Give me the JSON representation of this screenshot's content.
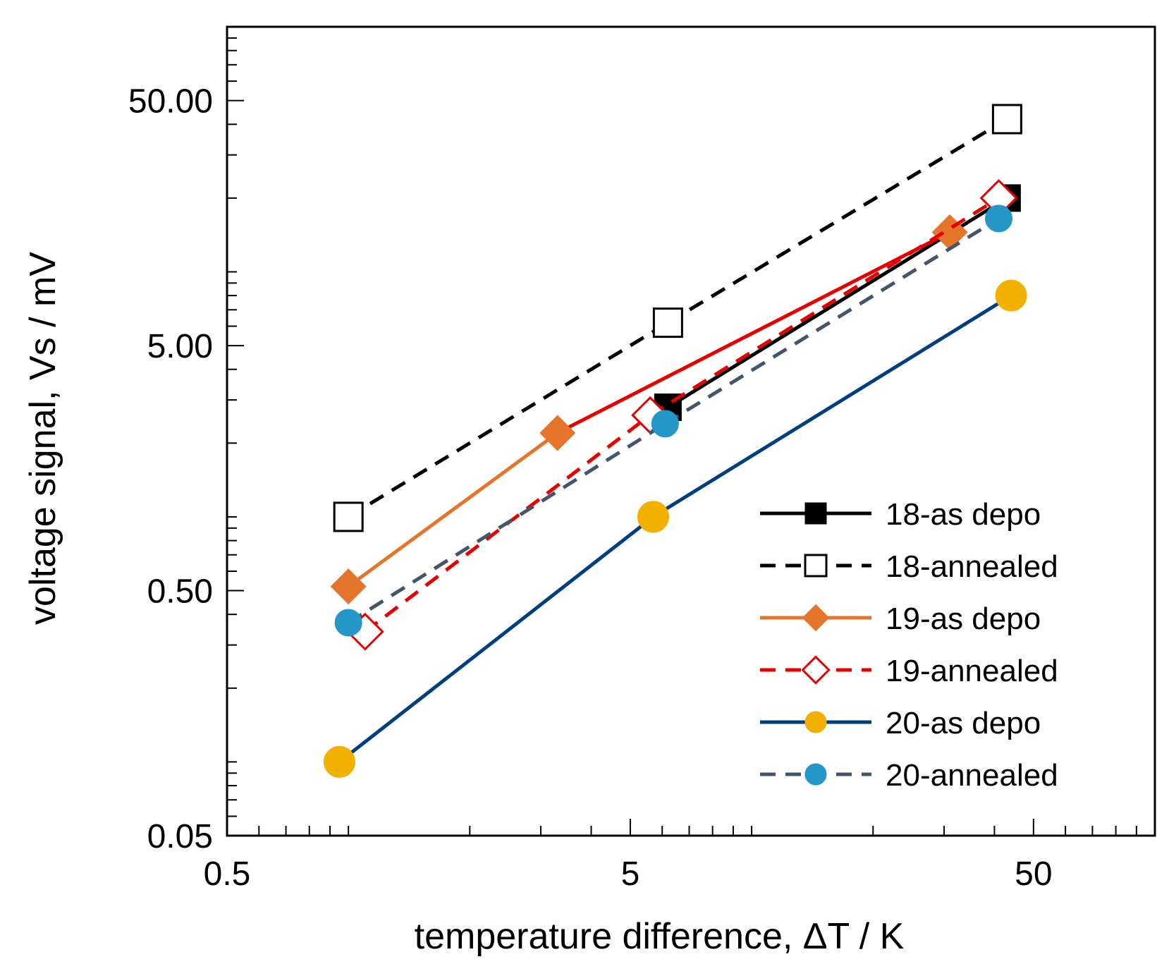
{
  "chart_data": {
    "type": "line",
    "title": "",
    "xlabel": "temperature difference, ΔT / K",
    "ylabel": "voltage signal, Vs / mV",
    "xscale": "log",
    "yscale": "log",
    "xlim": [
      0.5,
      100
    ],
    "ylim": [
      0.05,
      100
    ],
    "x_ticks": [
      0.5,
      5,
      50
    ],
    "x_tick_labels": [
      "0.5",
      "5",
      "50"
    ],
    "y_ticks": [
      0.05,
      0.5,
      5,
      50
    ],
    "y_tick_labels": [
      "0.05",
      "0.50",
      "5.00",
      "50.00"
    ],
    "grid": false,
    "legend_position": "bottom-right",
    "series": [
      {
        "name": "18-as depo",
        "color": "#000000",
        "line": "solid",
        "marker": "square",
        "filled": true,
        "x": [
          6.2,
          43
        ],
        "y": [
          2.8,
          20
        ]
      },
      {
        "name": "18-annealed",
        "color": "#000000",
        "line": "dashed",
        "marker": "square",
        "filled": false,
        "x": [
          1.0,
          6.2,
          43
        ],
        "y": [
          1.0,
          6.2,
          42
        ]
      },
      {
        "name": "19-as depo",
        "color": "#e4752a",
        "line": "solid",
        "marker": "diamond",
        "filled": true,
        "x": [
          1.0,
          3.3,
          31
        ],
        "y": [
          0.52,
          2.2,
          14.5
        ]
      },
      {
        "name": "19-annealed",
        "color": "#e60000",
        "line": "dashed",
        "marker": "diamond",
        "filled": false,
        "x": [
          1.1,
          5.6,
          41
        ],
        "y": [
          0.34,
          2.6,
          20
        ]
      },
      {
        "name": "20-as depo",
        "color": "#003f7f",
        "line": "solid",
        "marker": "circle",
        "filled": true,
        "marker_color": "#f2b000",
        "x": [
          0.95,
          5.7,
          44
        ],
        "y": [
          0.1,
          1.0,
          8
        ]
      },
      {
        "name": "20-annealed",
        "color": "#44546a",
        "line": "dashed",
        "marker": "circle",
        "filled": true,
        "marker_color": "#2596c8",
        "x": [
          1.0,
          6.1,
          41
        ],
        "y": [
          0.37,
          2.4,
          16.5
        ]
      }
    ],
    "segment_colors": {
      "19-as depo": [
        "#e4752a",
        "#e60000"
      ]
    }
  }
}
